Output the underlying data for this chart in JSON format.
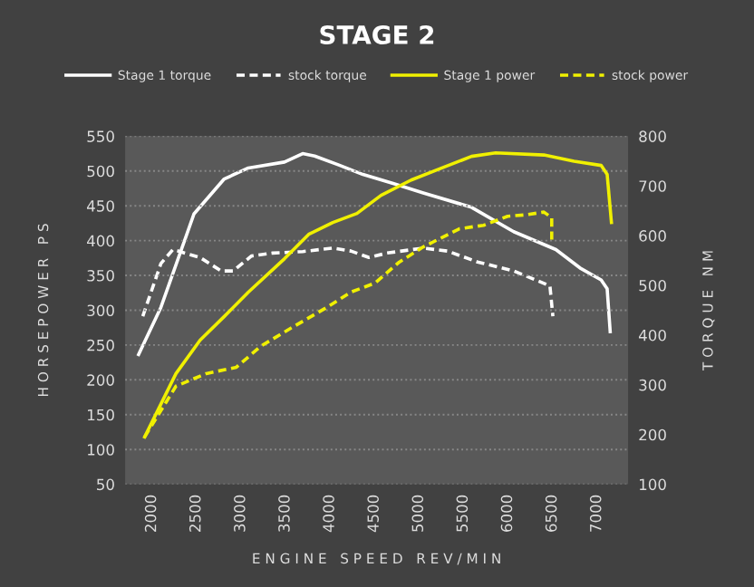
{
  "chart_data": {
    "type": "line",
    "title": "STAGE 2",
    "xlabel": "E N G I N E   S P E E D   R E V / M I N",
    "ylabel": "H O R S E P O W E R   P S",
    "y2label": "T O R Q U E   N M",
    "xlim": [
      1700,
      7350
    ],
    "xticks": [
      2000,
      2500,
      3000,
      3500,
      4000,
      4500,
      5000,
      5500,
      6000,
      6500,
      7000
    ],
    "ylim": [
      50,
      550
    ],
    "yticks": [
      50,
      100,
      150,
      200,
      250,
      300,
      350,
      400,
      450,
      500,
      550
    ],
    "y2lim": [
      100,
      800
    ],
    "y2ticks": [
      100,
      200,
      300,
      400,
      500,
      600,
      700,
      800
    ],
    "grid": "y",
    "legend": "top",
    "marker": "none",
    "series": [
      {
        "name": "Stage 1 torque",
        "color": "#ffffff",
        "axis": "y2",
        "line_style": "solid",
        "x": [
          1851,
          2102,
          2474,
          2813,
          3084,
          3490,
          3694,
          3829,
          4100,
          4371,
          4710,
          5049,
          5591,
          6065,
          6539,
          6810,
          7047,
          7115,
          7149
        ],
        "values": [
          361,
          456,
          644,
          714,
          736,
          748,
          765,
          760,
          742,
          723,
          705,
          686,
          657,
          608,
          572,
          535,
          511,
          493,
          407
        ]
      },
      {
        "name": "stock torque",
        "color": "#ffffff",
        "axis": "y2",
        "line_style": "dashed",
        "x": [
          1898,
          2102,
          2237,
          2542,
          2779,
          2914,
          3118,
          3355,
          3694,
          4033,
          4236,
          4439,
          4642,
          5049,
          5320,
          5659,
          6065,
          6472,
          6505
        ],
        "values": [
          438,
          544,
          572,
          556,
          529,
          529,
          559,
          565,
          568,
          575,
          569,
          556,
          565,
          575,
          569,
          547,
          529,
          499,
          438
        ]
      },
      {
        "name": "Stage 1 power",
        "color": "#f0f000",
        "axis": "y",
        "line_style": "solid",
        "x": [
          1919,
          2271,
          2542,
          2813,
          3084,
          3490,
          3762,
          4033,
          4304,
          4575,
          4913,
          5252,
          5591,
          5862,
          6404,
          6743,
          7047,
          7115,
          7163
        ],
        "values": [
          118,
          209,
          257,
          291,
          326,
          374,
          409,
          426,
          439,
          465,
          487,
          504,
          521,
          526,
          523,
          514,
          508,
          495,
          426
        ]
      },
      {
        "name": "stock power",
        "color": "#f0f000",
        "axis": "y",
        "line_style": "dashed",
        "x": [
          1919,
          2271,
          2610,
          2949,
          3220,
          3558,
          3965,
          4236,
          4507,
          4778,
          5049,
          5455,
          5726,
          5997,
          6201,
          6404,
          6492,
          6492
        ],
        "values": [
          118,
          191,
          209,
          218,
          248,
          274,
          304,
          326,
          339,
          369,
          391,
          417,
          422,
          435,
          437,
          441,
          433,
          395
        ]
      }
    ]
  }
}
